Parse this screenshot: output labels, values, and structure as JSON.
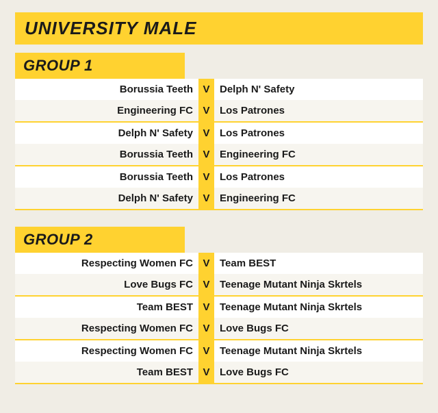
{
  "category_title": "UNIVERSITY MALE",
  "vs_label": "V",
  "colors": {
    "accent": "#ffd230",
    "bg": "#f0ede5",
    "row_bg": "#ffffff",
    "row_shade_bg": "#f7f5ef",
    "text": "#1a1a1a"
  },
  "groups": [
    {
      "title": "GROUP 1",
      "sections": [
        [
          {
            "home": "Borussia Teeth",
            "away": "Delph N' Safety",
            "shade": false
          },
          {
            "home": "Engineering FC",
            "away": "Los Patrones",
            "shade": true
          }
        ],
        [
          {
            "home": "Delph N' Safety",
            "away": "Los Patrones",
            "shade": false
          },
          {
            "home": "Borussia Teeth",
            "away": "Engineering FC",
            "shade": true
          }
        ],
        [
          {
            "home": "Borussia Teeth",
            "away": "Los Patrones",
            "shade": false
          },
          {
            "home": "Delph N' Safety",
            "away": "Engineering FC",
            "shade": true
          }
        ]
      ]
    },
    {
      "title": "GROUP 2",
      "sections": [
        [
          {
            "home": "Respecting Women FC",
            "away": "Team BEST",
            "shade": false
          },
          {
            "home": "Love Bugs FC",
            "away": "Teenage Mutant Ninja Skrtels",
            "shade": true
          }
        ],
        [
          {
            "home": "Team BEST",
            "away": "Teenage Mutant Ninja Skrtels",
            "shade": false
          },
          {
            "home": "Respecting Women FC",
            "away": "Love Bugs FC",
            "shade": true
          }
        ],
        [
          {
            "home": "Respecting Women FC",
            "away": "Teenage Mutant Ninja Skrtels",
            "shade": false
          },
          {
            "home": "Team BEST",
            "away": "Love Bugs FC",
            "shade": true
          }
        ]
      ]
    }
  ]
}
